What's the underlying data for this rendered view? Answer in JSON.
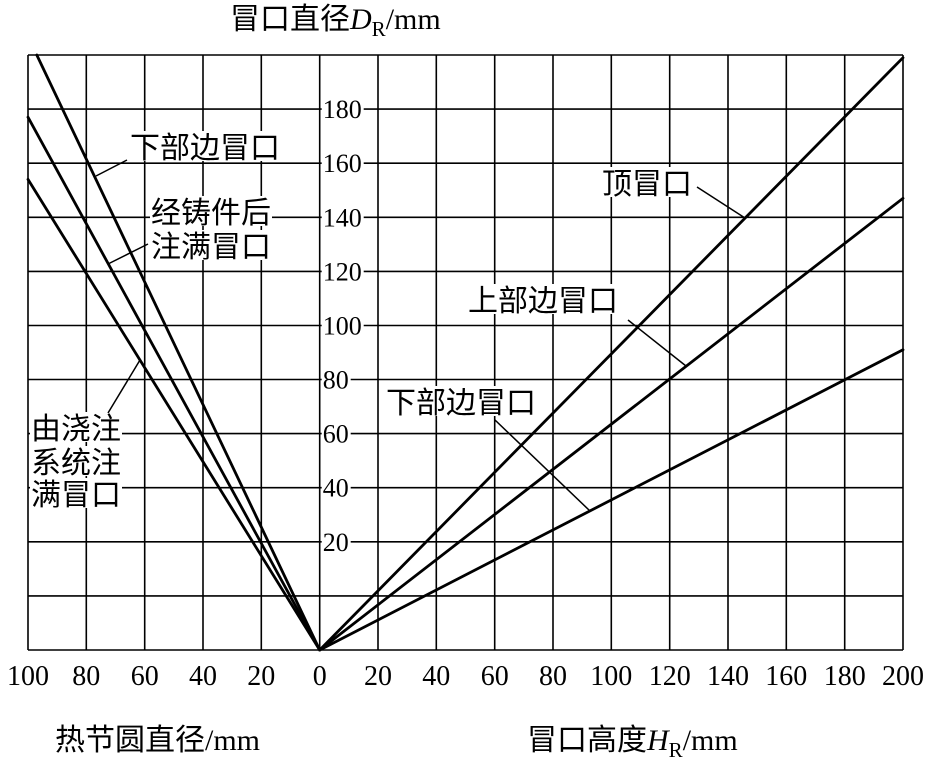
{
  "chart_data": {
    "type": "line",
    "ylabel": {
      "text": "冒口直径",
      "symbol": "D",
      "subscript": "R",
      "unit": "/mm"
    },
    "ylim": [
      -20,
      200
    ],
    "yticks": [
      20,
      40,
      60,
      80,
      100,
      120,
      140,
      160,
      180
    ],
    "grid": true,
    "x_axes": [
      {
        "label": "热节圆直径/mm",
        "range": [
          100,
          0
        ],
        "ticks": [
          100,
          80,
          60,
          40,
          20
        ]
      },
      {
        "label": {
          "text": "冒口高度",
          "symbol": "H",
          "subscript": "R",
          "unit": "/mm"
        },
        "range": [
          0,
          200
        ],
        "ticks": [
          0,
          20,
          40,
          60,
          80,
          100,
          120,
          140,
          160,
          180,
          200
        ]
      }
    ],
    "series": [
      {
        "label": [
          "下部边冒口"
        ],
        "x_axis": 0,
        "x": [
          0,
          97
        ],
        "y": [
          -20,
          200
        ]
      },
      {
        "label": [
          "经铸件后",
          "注满冒口"
        ],
        "x_axis": 0,
        "x": [
          0,
          100
        ],
        "y": [
          -20,
          177
        ]
      },
      {
        "label": [
          "由浇注",
          "系统注",
          "满冒口"
        ],
        "x_axis": 0,
        "x": [
          0,
          100
        ],
        "y": [
          -20,
          154
        ]
      },
      {
        "label": [
          "顶冒口"
        ],
        "x_axis": 1,
        "x": [
          0,
          200
        ],
        "y": [
          -20,
          199
        ]
      },
      {
        "label": [
          "上部边冒口"
        ],
        "x_axis": 1,
        "x": [
          0,
          200
        ],
        "y": [
          -20,
          147
        ]
      },
      {
        "label": [
          "下部边冒口"
        ],
        "x_axis": 1,
        "x": [
          0,
          200
        ],
        "y": [
          -20,
          91
        ]
      }
    ]
  }
}
